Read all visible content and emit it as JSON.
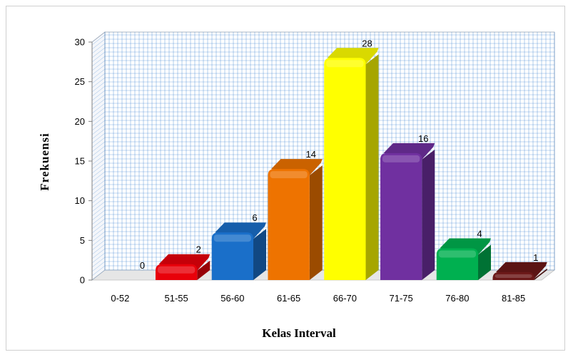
{
  "chart_data": {
    "type": "bar",
    "title": "",
    "xlabel": "Kelas Interval",
    "ylabel": "Frekuensi",
    "categories": [
      "0-52",
      "51-55",
      "56-60",
      "61-65",
      "66-70",
      "71-75",
      "76-80",
      "81-85"
    ],
    "values": [
      0,
      2,
      6,
      14,
      28,
      16,
      4,
      1
    ],
    "value_labels": [
      "0",
      "2",
      "6",
      "14",
      "28",
      "16",
      "4",
      "1"
    ],
    "colors": [
      "#ffffff",
      "#e8000a",
      "#1a6fc9",
      "#ee7300",
      "#ffff00",
      "#7030a0",
      "#00b050",
      "#6b1818"
    ],
    "ylim": [
      0,
      30
    ],
    "yticks": [
      0,
      5,
      10,
      15,
      20,
      25,
      30
    ],
    "ytick_labels": [
      "0",
      "5",
      "10",
      "15",
      "20",
      "25",
      "30"
    ],
    "grid": true,
    "grid_color": "#1a6fc9",
    "legend": "none",
    "style": "3d-column"
  }
}
